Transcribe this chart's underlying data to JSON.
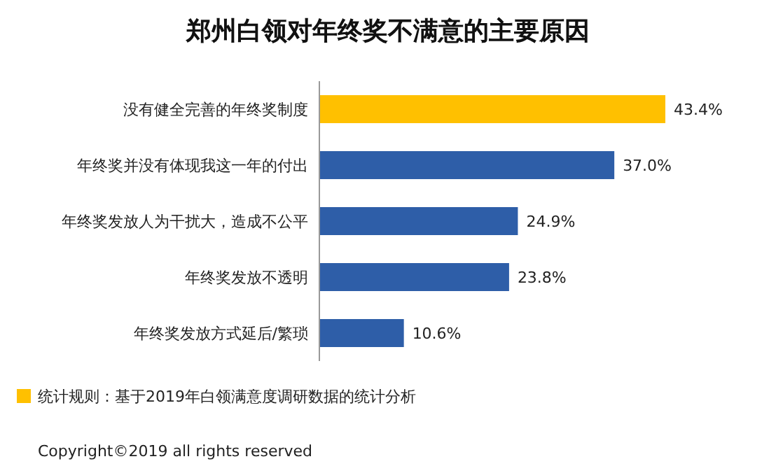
{
  "chart_data": {
    "type": "bar",
    "orientation": "horizontal",
    "title": "郑州白领对年终奖不满意的主要原因",
    "categories": [
      "没有健全完善的年终奖制度",
      "年终奖并没有体现我这一年的付出",
      "年终奖发放人为干扰大，造成不公平",
      "年终奖发放不透明",
      "年终奖发放方式延后/繁琐"
    ],
    "values": [
      43.4,
      37.0,
      24.9,
      23.8,
      10.6
    ],
    "colors": [
      "#ffc000",
      "#2e5ea8",
      "#2e5ea8",
      "#2e5ea8",
      "#2e5ea8"
    ],
    "value_labels": [
      "43.4%",
      "37.0%",
      "24.9%",
      "23.8%",
      "10.6%"
    ],
    "annotations": [
      "统计规则：基于2019年白领满意度调研数据的统计分析",
      "Copyright©2019 all rights reserved"
    ]
  }
}
